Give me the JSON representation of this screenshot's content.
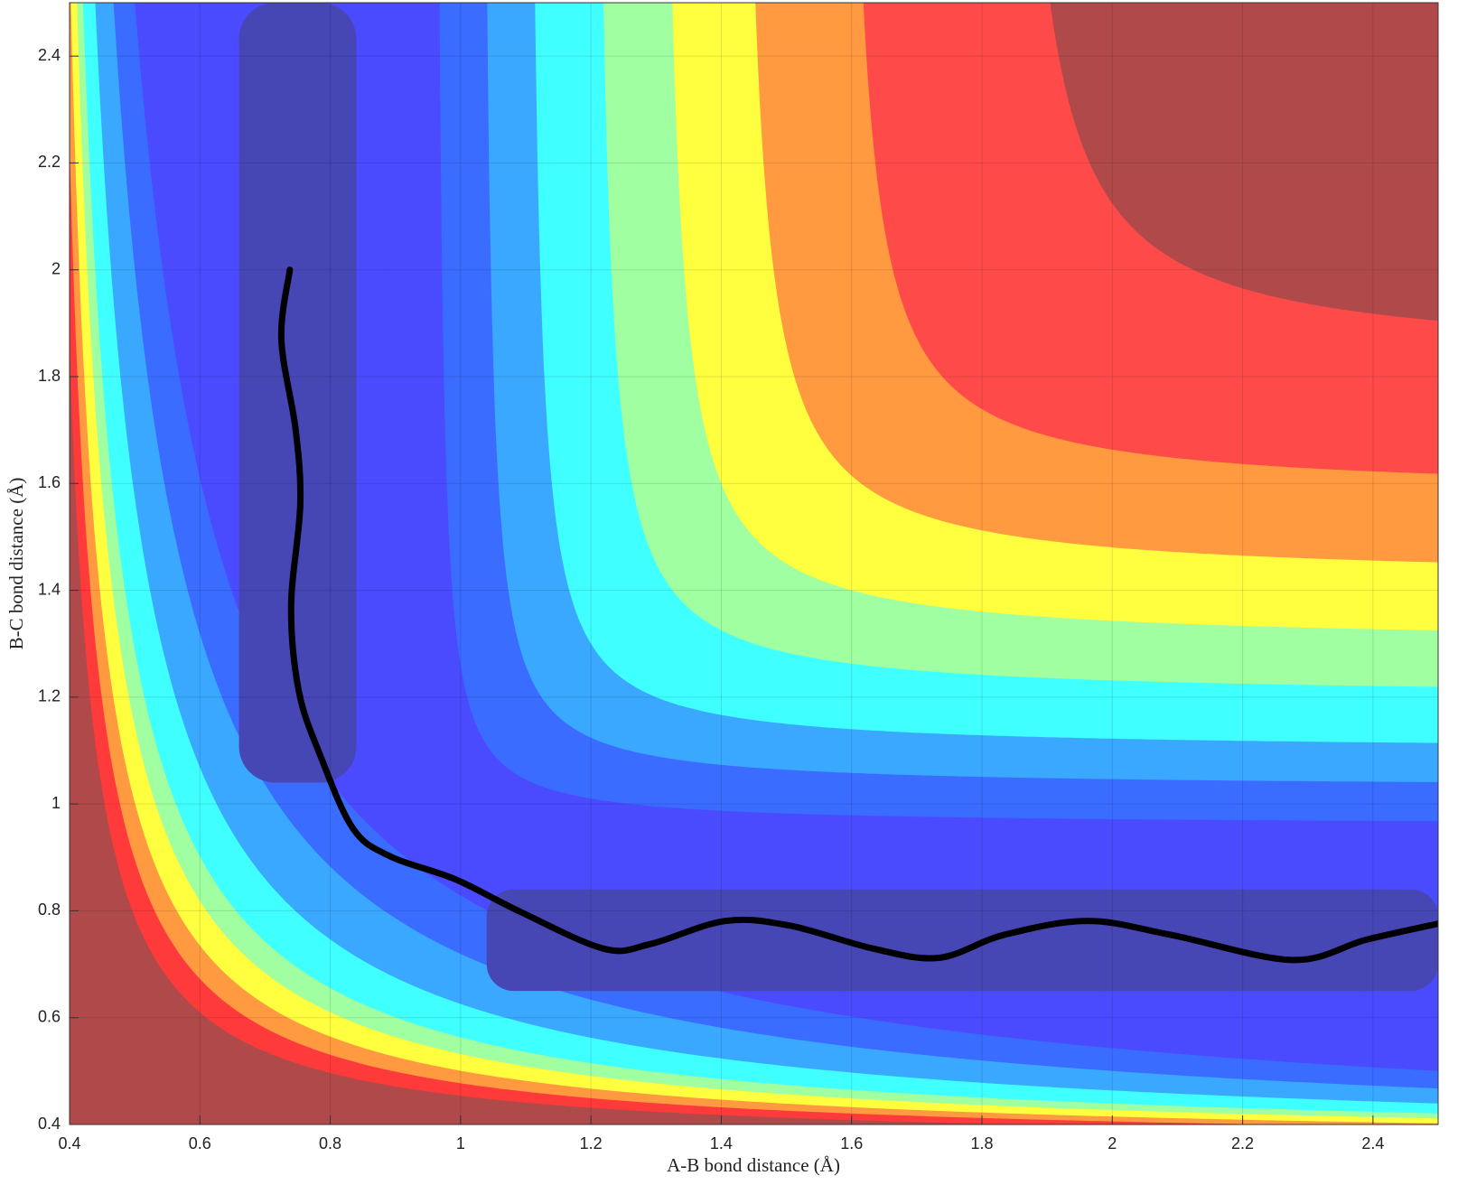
{
  "chart_data": {
    "type": "contour",
    "xlabel": "A-B bond distance (Å)",
    "ylabel": "B-C bond distance (Å)",
    "xlim": [
      0.4,
      2.5
    ],
    "ylim": [
      0.4,
      2.5
    ],
    "xticks": [
      0.4,
      0.6,
      0.8,
      1,
      1.2,
      1.4,
      1.6,
      1.8,
      2,
      2.2,
      2.4
    ],
    "yticks": [
      0.4,
      0.6,
      0.8,
      1,
      1.2,
      1.4,
      1.6,
      1.8,
      2,
      2.2,
      2.4
    ],
    "grid": true,
    "series": [
      {
        "color": "#000000",
        "x": [
          0.738,
          0.725,
          0.747,
          0.754,
          0.74,
          0.752,
          0.785,
          0.835,
          0.892,
          0.992,
          1.092,
          1.22,
          1.292,
          1.406,
          1.506,
          1.634,
          1.734,
          1.834,
          1.962,
          2.09,
          2.276,
          2.39,
          2.5
        ],
        "values": [
          2.0,
          1.87,
          1.7,
          1.56,
          1.37,
          1.21,
          1.09,
          0.954,
          0.902,
          0.859,
          0.798,
          0.729,
          0.738,
          0.781,
          0.772,
          0.729,
          0.712,
          0.755,
          0.781,
          0.755,
          0.708,
          0.746,
          0.776
        ]
      }
    ]
  }
}
